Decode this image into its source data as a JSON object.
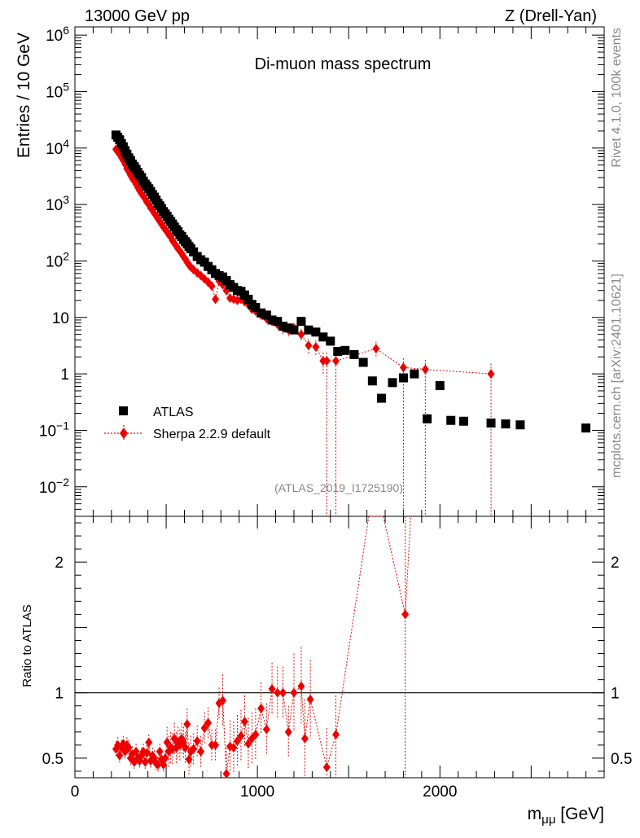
{
  "header": {
    "left": "13000 GeV pp",
    "right": "Z (Drell-Yan)"
  },
  "side_labels": {
    "rivet": "Rivet 4.1.0,  100k events",
    "site": "mcplots.cern.ch [arXiv:2401.10621]"
  },
  "chart_data": [
    {
      "type": "scatter",
      "title": "Di-muon mass spectrum",
      "ylabel": "Entries / 10 GeV",
      "xlim": [
        0,
        2900
      ],
      "ylim": [
        0.003,
        1400000
      ],
      "yscale": "log",
      "yticks": [
        {
          "v": 0.01,
          "base": "10",
          "exp": "−2"
        },
        {
          "v": 0.1,
          "base": "10",
          "exp": "−1"
        },
        {
          "v": 1,
          "base": "1",
          "exp": ""
        },
        {
          "v": 10,
          "base": "10",
          "exp": ""
        },
        {
          "v": 100,
          "base": "10",
          "exp": "2"
        },
        {
          "v": 1000,
          "base": "10",
          "exp": "3"
        },
        {
          "v": 10000,
          "base": "10",
          "exp": "4"
        },
        {
          "v": 100000,
          "base": "10",
          "exp": "5"
        },
        {
          "v": 1000000,
          "base": "10",
          "exp": "6"
        }
      ],
      "legend": {
        "placement": "lower-left"
      },
      "annotation": "(ATLAS_2019_I1725190)",
      "series": [
        {
          "name": "ATLAS",
          "color": "#000000",
          "marker": "square",
          "x": [
            225,
            235,
            245,
            255,
            265,
            275,
            285,
            295,
            305,
            315,
            325,
            335,
            345,
            355,
            365,
            375,
            385,
            395,
            405,
            415,
            425,
            435,
            445,
            455,
            465,
            475,
            485,
            495,
            505,
            515,
            525,
            535,
            545,
            555,
            565,
            575,
            585,
            595,
            605,
            615,
            625,
            635,
            650,
            670,
            690,
            710,
            730,
            750,
            770,
            790,
            810,
            830,
            850,
            870,
            890,
            910,
            930,
            950,
            970,
            990,
            1020,
            1050,
            1080,
            1110,
            1140,
            1170,
            1200,
            1240,
            1280,
            1320,
            1360,
            1400,
            1440,
            1480,
            1530,
            1580,
            1630,
            1680,
            1740,
            1800,
            1860,
            1930,
            2000,
            2060,
            2130,
            2280,
            2360,
            2440,
            2800
          ],
          "y": [
            17000,
            15500,
            14000,
            12000,
            10500,
            9000,
            7800,
            6700,
            6000,
            5200,
            4700,
            4200,
            3700,
            3300,
            3000,
            2600,
            2300,
            2100,
            1900,
            1700,
            1500,
            1350,
            1200,
            1050,
            950,
            850,
            750,
            680,
            620,
            550,
            500,
            450,
            400,
            360,
            330,
            290,
            270,
            240,
            220,
            200,
            180,
            165,
            145,
            120,
            105,
            95,
            80,
            70,
            60,
            55,
            52,
            45,
            38,
            34,
            30,
            29,
            25,
            21,
            17,
            15,
            12,
            11,
            9,
            8.5,
            7,
            6.5,
            6,
            8.5,
            6,
            5.5,
            4.5,
            3.8,
            2.5,
            2.6,
            2.2,
            1.6,
            0.75,
            0.37,
            0.7,
            0.85,
            1.0,
            0.16,
            0.62,
            0.15,
            0.145,
            0.135,
            0.13,
            0.125,
            0.11
          ]
        },
        {
          "name": "Sherpa 2.2.9 default",
          "color": "#ee0000",
          "marker": "diamond",
          "x": [
            225,
            235,
            245,
            255,
            265,
            275,
            285,
            295,
            305,
            315,
            325,
            335,
            345,
            355,
            365,
            375,
            385,
            395,
            405,
            415,
            425,
            435,
            445,
            455,
            465,
            475,
            485,
            495,
            505,
            515,
            525,
            535,
            545,
            555,
            565,
            575,
            585,
            595,
            605,
            615,
            625,
            635,
            650,
            670,
            690,
            710,
            730,
            750,
            770,
            790,
            810,
            830,
            850,
            870,
            890,
            910,
            930,
            950,
            970,
            990,
            1020,
            1050,
            1080,
            1110,
            1140,
            1170,
            1200,
            1240,
            1280,
            1320,
            1360,
            1380,
            1430,
            1650,
            1800,
            1920,
            2280
          ],
          "y": [
            9500,
            8500,
            8000,
            6800,
            6000,
            5200,
            4300,
            3800,
            3300,
            2900,
            2600,
            2300,
            2000,
            1750,
            1550,
            1400,
            1250,
            1100,
            1000,
            870,
            800,
            700,
            630,
            560,
            500,
            450,
            400,
            360,
            330,
            290,
            270,
            230,
            205,
            185,
            165,
            150,
            135,
            120,
            108,
            95,
            85,
            78,
            70,
            62,
            55,
            48,
            42,
            36,
            21,
            44,
            38,
            30,
            22,
            21,
            20,
            21,
            19,
            17,
            14,
            13,
            11,
            9.5,
            8.5,
            7.5,
            6.5,
            6,
            6.5,
            5,
            3.2,
            3,
            1.7,
            1.7,
            1.7,
            2.8,
            1.3,
            1.2,
            1.0
          ]
        }
      ]
    },
    {
      "type": "scatter",
      "ylabel": "Ratio to ATLAS",
      "xlabel_base": "m",
      "xlabel_sub": "μμ",
      "xlabel_unit": " [GeV]",
      "xlim": [
        0,
        2900
      ],
      "ylim": [
        0.35,
        2.35
      ],
      "xticks": [
        {
          "v": 0,
          "label": "0"
        },
        {
          "v": 1000,
          "label": "1000"
        },
        {
          "v": 2000,
          "label": "2000"
        }
      ],
      "yticks": [
        {
          "v": 0.5,
          "label": "0.5"
        },
        {
          "v": 1,
          "label": "1"
        },
        {
          "v": 2,
          "label": "2"
        }
      ],
      "reference": 1,
      "series": [
        {
          "name": "Sherpa 2.2.9 default",
          "color": "#ee0000",
          "marker": "diamond",
          "x": [
            225,
            235,
            245,
            255,
            265,
            275,
            285,
            295,
            305,
            315,
            325,
            335,
            345,
            355,
            365,
            375,
            385,
            395,
            405,
            415,
            425,
            435,
            445,
            455,
            465,
            475,
            485,
            495,
            505,
            515,
            525,
            535,
            545,
            555,
            565,
            575,
            585,
            595,
            605,
            615,
            625,
            635,
            650,
            670,
            690,
            710,
            730,
            750,
            770,
            790,
            810,
            830,
            850,
            870,
            890,
            910,
            930,
            950,
            970,
            990,
            1020,
            1050,
            1080,
            1110,
            1140,
            1170,
            1200,
            1240,
            1260,
            1290,
            1380,
            1430,
            1810
          ],
          "y": [
            0.57,
            0.6,
            0.52,
            0.58,
            0.61,
            0.55,
            0.6,
            0.58,
            0.5,
            0.53,
            0.47,
            0.55,
            0.5,
            0.48,
            0.52,
            0.55,
            0.47,
            0.54,
            0.62,
            0.48,
            0.52,
            0.5,
            0.46,
            0.45,
            0.55,
            0.49,
            0.45,
            0.5,
            0.62,
            0.55,
            0.58,
            0.57,
            0.65,
            0.58,
            0.62,
            0.6,
            0.65,
            0.62,
            0.58,
            0.76,
            0.49,
            0.55,
            0.57,
            0.63,
            0.55,
            0.73,
            0.77,
            0.6,
            0.6,
            0.92,
            0.94,
            0.38,
            0.59,
            0.58,
            0.63,
            0.67,
            0.78,
            0.61,
            0.65,
            0.68,
            0.88,
            0.72,
            1.03,
            1.0,
            1.0,
            0.7,
            1.0,
            1.05,
            0.65,
            0.95,
            0.43,
            0.68,
            1.6
          ]
        }
      ]
    }
  ]
}
